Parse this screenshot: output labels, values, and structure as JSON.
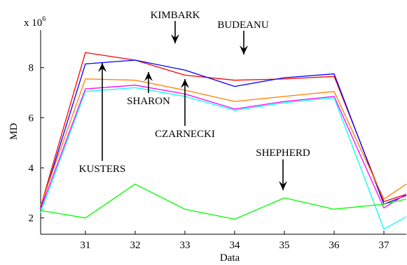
{
  "chart_data": {
    "type": "line",
    "xlabel": "Data",
    "ylabel": "MD",
    "y_multiplier_base": "x 10",
    "y_multiplier_exp": "6",
    "xlim": [
      30.1,
      37.45
    ],
    "ylim": [
      1.35,
      9.5
    ],
    "x": [
      30.1,
      31,
      32,
      33,
      34,
      35,
      36,
      37,
      37.45
    ],
    "x_ticks": [
      31,
      32,
      33,
      34,
      35,
      36,
      37
    ],
    "x_tick_labels": [
      "31",
      "32",
      "33",
      "34",
      "35",
      "36",
      "37"
    ],
    "y_ticks": [
      2,
      4,
      6,
      8
    ],
    "y_tick_labels": [
      "2",
      "4",
      "6",
      "8"
    ],
    "grid": false,
    "legend": "none",
    "series": [
      {
        "name": "KIMBARK",
        "color": "#ff0000",
        "values": [
          2.45,
          8.6,
          8.3,
          7.7,
          7.5,
          7.55,
          7.65,
          2.65,
          2.95
        ]
      },
      {
        "name": "BUDEANU",
        "color": "#0000ff",
        "values": [
          2.4,
          8.15,
          8.3,
          7.9,
          7.25,
          7.6,
          7.75,
          2.55,
          2.9
        ]
      },
      {
        "name": "KUSTERS",
        "color": "#ff8000",
        "values": [
          2.5,
          7.55,
          7.5,
          7.1,
          6.65,
          6.85,
          7.05,
          2.75,
          3.35
        ]
      },
      {
        "name": "SHARON",
        "color": "#ff00ff",
        "values": [
          2.35,
          7.15,
          7.3,
          6.95,
          6.35,
          6.65,
          6.85,
          2.4,
          2.95
        ]
      },
      {
        "name": "CZARNECKI",
        "color": "#00ffff",
        "values": [
          2.2,
          7.05,
          7.2,
          6.85,
          6.3,
          6.6,
          6.8,
          1.55,
          2.05
        ]
      },
      {
        "name": "SHEPHERD",
        "color": "#00ff00",
        "values": [
          2.3,
          2.0,
          3.35,
          2.35,
          1.95,
          2.8,
          2.35,
          2.55,
          2.75
        ]
      }
    ],
    "annotations": [
      {
        "text": "KIMBARK",
        "series": "KIMBARK"
      },
      {
        "text": "BUDEANU",
        "series": "BUDEANU"
      },
      {
        "text": "KUSTERS",
        "series": "KUSTERS"
      },
      {
        "text": "SHARON",
        "series": "SHARON"
      },
      {
        "text": "CZARNECKI",
        "series": "CZARNECKI"
      },
      {
        "text": "SHEPHERD",
        "series": "SHEPHERD"
      }
    ]
  }
}
